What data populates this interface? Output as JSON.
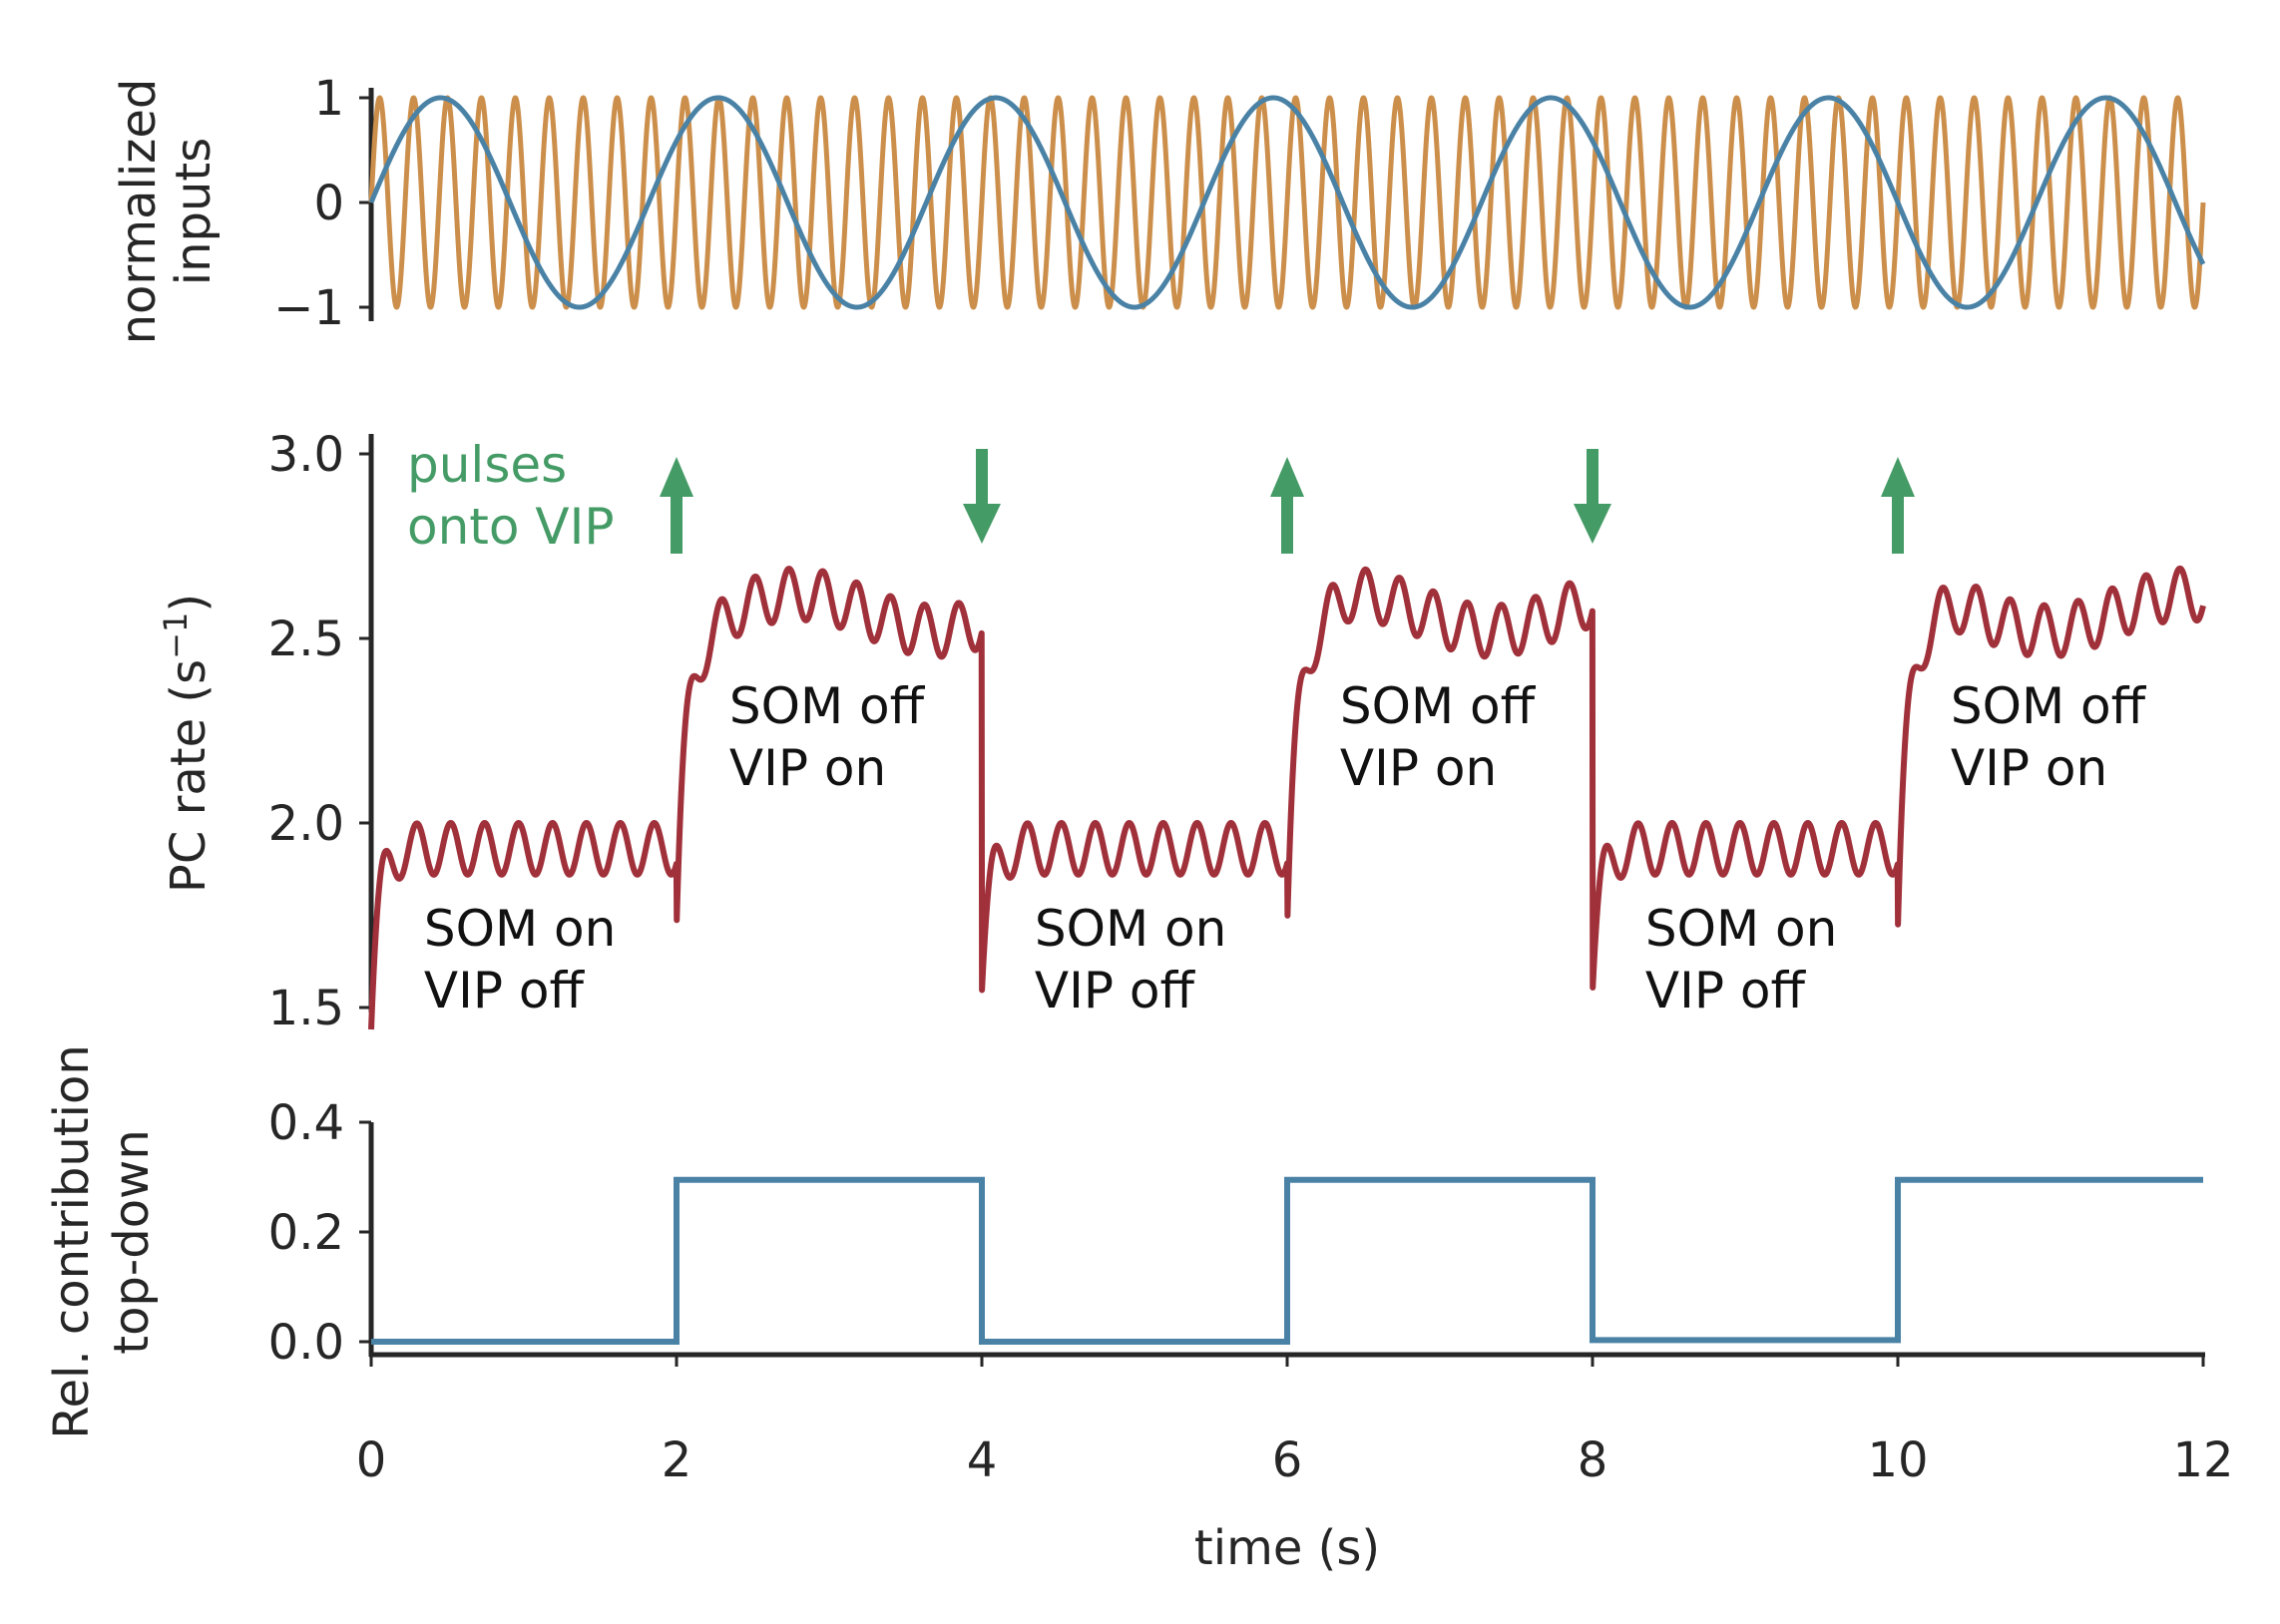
{
  "colors": {
    "fast_input": "#cc8f4b",
    "slow_input": "#4a82a6",
    "pc_rate": "#a0303a",
    "top_down": "#4a82a6",
    "pulses": "#459b66",
    "axis": "#262626"
  },
  "chart_data": [
    {
      "type": "line",
      "ylabel": [
        "normalized",
        "inputs"
      ],
      "ylim": [
        -1,
        1
      ],
      "yticks": [
        1,
        0,
        -1
      ],
      "ytick_labels": [
        "1",
        "0",
        "−1"
      ],
      "xlim": [
        0,
        12
      ],
      "series": [
        {
          "role": "fast input (sinusoid)",
          "frequency_hz": 4.5,
          "amplitude": 1,
          "phase_deg": 0
        },
        {
          "role": "slow input (sinusoid)",
          "frequency_hz": 0.55,
          "amplitude": 1,
          "phase_deg": 0
        }
      ]
    },
    {
      "type": "line",
      "ylabel": "PC rate (s⁻¹)",
      "ylabel_parts": {
        "main": "PC rate (s",
        "sup": "−1",
        "close": ")"
      },
      "ylim": [
        1.5,
        3.05
      ],
      "yticks": [
        3.0,
        2.5,
        2.0,
        1.5
      ],
      "ytick_labels": [
        "3.0",
        "2.5",
        "2.0",
        "1.5"
      ],
      "xlim": [
        0,
        12
      ],
      "phases": [
        {
          "start": 0,
          "end": 2,
          "state": "SOM on / VIP off",
          "baseline": 1.93,
          "ripple": 0.07
        },
        {
          "start": 2,
          "end": 4,
          "state": "SOM off / VIP on",
          "baseline": 2.6,
          "ripple": 0.12
        },
        {
          "start": 4,
          "end": 6,
          "state": "SOM on / VIP off",
          "baseline": 1.93,
          "ripple": 0.07
        },
        {
          "start": 6,
          "end": 8,
          "state": "SOM off / VIP on",
          "baseline": 2.6,
          "ripple": 0.12
        },
        {
          "start": 8,
          "end": 10,
          "state": "SOM on / VIP off",
          "baseline": 1.93,
          "ripple": 0.07
        },
        {
          "start": 10,
          "end": 12,
          "state": "SOM off / VIP on",
          "baseline": 2.6,
          "ripple": 0.12
        }
      ],
      "annotations": [
        {
          "x": 0.3,
          "lines": [
            "SOM on",
            "VIP off"
          ]
        },
        {
          "x": 2.3,
          "lines": [
            "SOM off",
            "VIP on"
          ]
        },
        {
          "x": 4.3,
          "lines": [
            "SOM on",
            "VIP off"
          ]
        },
        {
          "x": 6.3,
          "lines": [
            "SOM off",
            "VIP on"
          ]
        },
        {
          "x": 8.3,
          "lines": [
            "SOM on",
            "VIP off"
          ]
        },
        {
          "x": 10.3,
          "lines": [
            "SOM off",
            "VIP on"
          ]
        }
      ],
      "pulses": {
        "label": [
          "pulses",
          "onto VIP"
        ],
        "events": [
          {
            "x": 2,
            "direction": "up"
          },
          {
            "x": 4,
            "direction": "down"
          },
          {
            "x": 6,
            "direction": "up"
          },
          {
            "x": 8,
            "direction": "down"
          },
          {
            "x": 10,
            "direction": "up"
          }
        ]
      }
    },
    {
      "type": "line",
      "ylabel": [
        "Rel. contribution",
        "top-down"
      ],
      "ylim": [
        -0.02,
        0.4
      ],
      "yticks": [
        0.4,
        0.2,
        0.0
      ],
      "ytick_labels": [
        "0.4",
        "0.2",
        "0.0"
      ],
      "xlim": [
        0,
        12
      ],
      "xlabel": "time (s)",
      "xticks": [
        0,
        2,
        4,
        6,
        8,
        10,
        12
      ],
      "xtick_labels": [
        "0",
        "2",
        "4",
        "6",
        "8",
        "10",
        "12"
      ],
      "series": [
        {
          "role": "relative top-down contribution",
          "x": [
            0,
            2,
            2,
            4,
            4,
            6,
            6,
            8,
            8,
            10,
            10,
            12
          ],
          "y": [
            0.0,
            0.0,
            0.295,
            0.295,
            0.0,
            0.0,
            0.295,
            0.295,
            0.003,
            0.003,
            0.295,
            0.295
          ]
        }
      ]
    }
  ]
}
